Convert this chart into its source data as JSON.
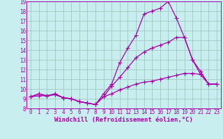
{
  "xlabel": "Windchill (Refroidissement éolien,°C)",
  "xlim": [
    -0.5,
    23.5
  ],
  "ylim": [
    8,
    19
  ],
  "xticks": [
    0,
    1,
    2,
    3,
    4,
    5,
    6,
    7,
    8,
    9,
    10,
    11,
    12,
    13,
    14,
    15,
    16,
    17,
    18,
    19,
    20,
    21,
    22,
    23
  ],
  "yticks": [
    8,
    9,
    10,
    11,
    12,
    13,
    14,
    15,
    16,
    17,
    18,
    19
  ],
  "background_color": "#c8eef0",
  "grid_color": "#a0c8c0",
  "line_color": "#aa00aa",
  "line1_y": [
    9.2,
    9.5,
    9.3,
    9.5,
    9.1,
    9.0,
    8.7,
    8.55,
    8.4,
    9.5,
    10.5,
    12.7,
    14.2,
    15.5,
    17.7,
    18.0,
    18.3,
    19.0,
    17.3,
    15.3,
    13.0,
    11.5,
    10.5,
    10.5
  ],
  "line2_y": [
    9.2,
    9.3,
    9.3,
    9.4,
    9.1,
    9.0,
    8.7,
    8.55,
    8.4,
    9.2,
    10.3,
    11.2,
    12.2,
    13.2,
    13.8,
    14.2,
    14.5,
    14.8,
    15.3,
    15.3,
    13.0,
    11.8,
    10.5,
    10.5
  ],
  "line3_y": [
    9.2,
    9.5,
    9.3,
    9.5,
    9.1,
    9.0,
    8.7,
    8.55,
    8.4,
    9.2,
    9.5,
    9.9,
    10.2,
    10.5,
    10.7,
    10.8,
    11.0,
    11.2,
    11.4,
    11.6,
    11.6,
    11.5,
    10.5,
    10.5
  ],
  "tick_fontsize": 5.5,
  "label_fontsize": 6.5
}
